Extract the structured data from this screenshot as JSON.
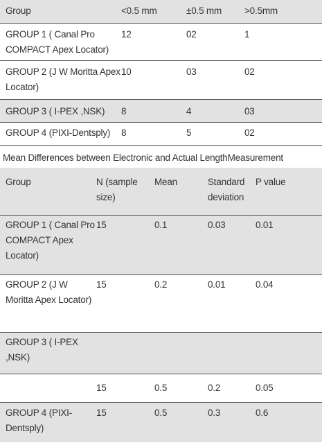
{
  "table1": {
    "headers": [
      "Group",
      "<0.5 mm",
      "±0.5 mm",
      ">0.5mm"
    ],
    "rows": [
      {
        "group": "GROUP 1 (  Canal Pro COMPACT Apex Locator)",
        "lt": "12",
        "pm": "02",
        "gt": "1"
      },
      {
        "group": "GROUP 2 (J W Moritta Apex Locator)",
        "lt": "10",
        "pm": "03",
        "gt": "02"
      },
      {
        "group": "GROUP 3 ( I-PEX ,NSK)",
        "lt": "8",
        "pm": "4",
        "gt": "03"
      },
      {
        "group": "GROUP 4 (PIXI-Dentsply)",
        "lt": "8",
        "pm": "5",
        "gt": "02"
      }
    ]
  },
  "caption": "Mean Differences between Electronic and Actual LengthMeasurement",
  "table2": {
    "headers": [
      "Group",
      "N (sample size)",
      "Mean",
      "Standard deviation",
      "P value"
    ],
    "rows": [
      {
        "group": "GROUP 1 (  Canal Pro COMPACT Apex Locator)",
        "n": "15",
        "mean": "0.1",
        "sd": "0.03",
        "p": "0.01"
      },
      {
        "group": "GROUP 2 (J W Moritta Apex Locator)",
        "n": "15",
        "mean": "0.2",
        "sd": "0.01",
        "p": "0.04"
      },
      {
        "group": "GROUP 3 ( I-PEX ,NSK)",
        "n": "",
        "mean": "",
        "sd": "",
        "p": ""
      },
      {
        "group": "",
        "n": "15",
        "mean": "0.5",
        "sd": "0.2",
        "p": "0.05"
      },
      {
        "group": "GROUP 4 (PIXI-Dentsply)",
        "n": "15",
        "mean": "0.5",
        "sd": "0.3",
        "p": "0.6"
      }
    ]
  }
}
